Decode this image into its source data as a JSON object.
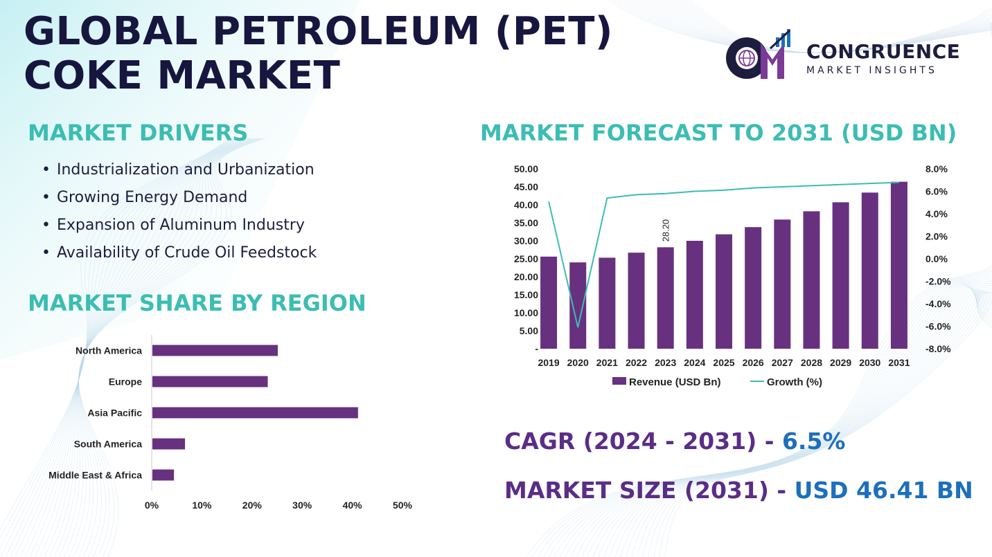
{
  "title": {
    "line1": "GLOBAL PETROLEUM (PET)",
    "line2": "COKE MARKET"
  },
  "logo": {
    "word": "CONGRUENCE",
    "sub": "MARKET INSIGHTS",
    "monogram": "CM"
  },
  "drivers": {
    "heading": "MARKET DRIVERS",
    "items": [
      "Industrialization and Urbanization",
      "Growing Energy Demand",
      "Expansion of Aluminum Industry",
      "Availability of Crude Oil Feedstock"
    ]
  },
  "region_heading": "MARKET SHARE BY REGION",
  "forecast_heading": "MARKET FORECAST TO 2031 (USD BN)",
  "stats": {
    "cagr_label": "CAGR (2024 - 2031)",
    "cagr_sep": " - ",
    "cagr_value": "6.5%",
    "size_label": "MARKET SIZE (2031)",
    "size_sep": " - ",
    "size_value": "USD 46.41 BN"
  },
  "colors": {
    "bar": "#67317f",
    "growth": "#3cbdb3",
    "heading": "#3cbdb3",
    "title": "#16163f"
  },
  "chart_data": [
    {
      "type": "bar",
      "orientation": "horizontal",
      "categories": [
        "North America",
        "Europe",
        "Asia Pacific",
        "South America",
        "Middle East & Africa"
      ],
      "values": [
        25,
        23,
        41,
        6.5,
        4.3
      ],
      "xlim": [
        0,
        50
      ],
      "ticks": [
        "0%",
        "10%",
        "20%",
        "30%",
        "40%",
        "50%"
      ],
      "grid": false
    },
    {
      "type": "bar",
      "categories": [
        "2019",
        "2020",
        "2021",
        "2022",
        "2023",
        "2024",
        "2025",
        "2026",
        "2027",
        "2028",
        "2029",
        "2030",
        "2031"
      ],
      "series": [
        {
          "name": "Revenue (USD Bn)",
          "type": "bar",
          "axis": "left",
          "values": [
            25.6,
            24.0,
            25.3,
            26.7,
            28.2,
            30.0,
            31.8,
            33.8,
            35.9,
            38.2,
            40.7,
            43.4,
            46.41
          ]
        },
        {
          "name": "Growth (%)",
          "type": "line",
          "axis": "right",
          "values": [
            5.1,
            -6.1,
            5.4,
            5.7,
            5.8,
            6.0,
            6.1,
            6.3,
            6.4,
            6.5,
            6.6,
            6.7,
            6.8
          ]
        }
      ],
      "data_labels": [
        {
          "index": 4,
          "text": "28.20"
        }
      ],
      "ylim_left": [
        0,
        50
      ],
      "ylim_right": [
        -8,
        8
      ],
      "left_ticks": [
        "-",
        "5.00",
        "10.00",
        "15.00",
        "20.00",
        "25.00",
        "30.00",
        "35.00",
        "40.00",
        "45.00",
        "50.00"
      ],
      "right_ticks": [
        "-8.0%",
        "-6.0%",
        "-4.0%",
        "-2.0%",
        "0.0%",
        "2.0%",
        "4.0%",
        "6.0%",
        "8.0%"
      ],
      "legend": "bottom",
      "grid": false
    }
  ]
}
